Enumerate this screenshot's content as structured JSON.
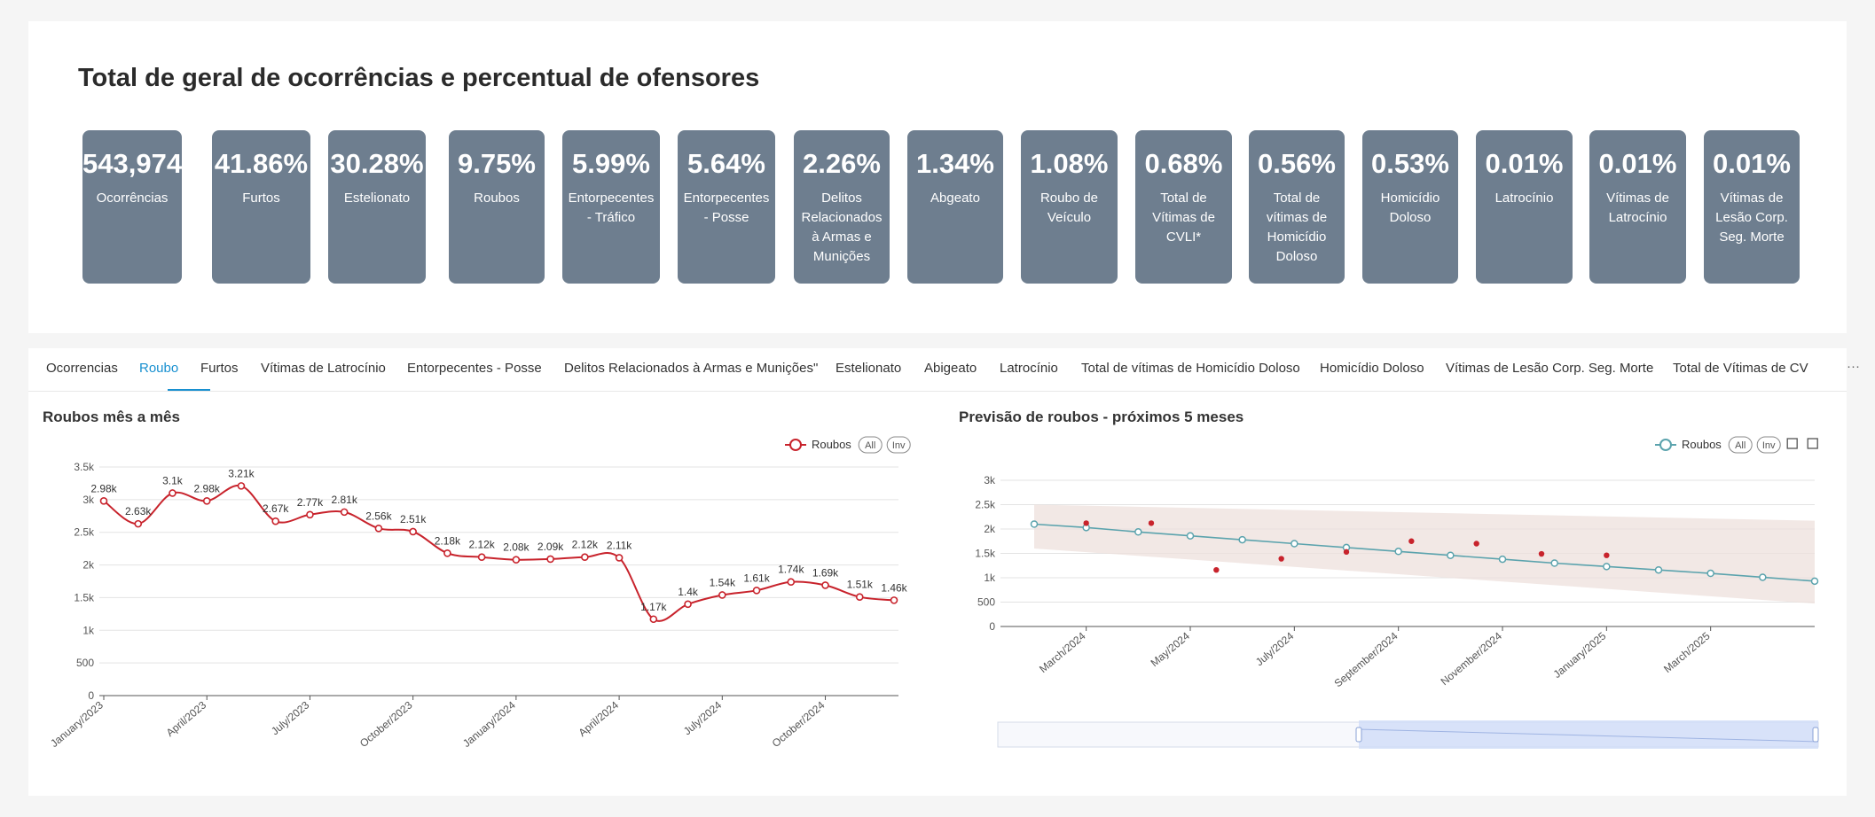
{
  "header": {
    "title": "Total de geral de ocorrências e percentual de ofensores"
  },
  "kpis": [
    {
      "value": "543,974",
      "label": "Ocorrências"
    },
    {
      "value": "41.86%",
      "label": "Furtos"
    },
    {
      "value": "30.28%",
      "label": "Estelionato"
    },
    {
      "value": "9.75%",
      "label": "Roubos"
    },
    {
      "value": "5.99%",
      "label": "Entorpecentes - Tráfico"
    },
    {
      "value": "5.64%",
      "label": "Entorpecentes - Posse"
    },
    {
      "value": "2.26%",
      "label": "Delitos Relacionados à Armas e Munições"
    },
    {
      "value": "1.34%",
      "label": "Abgeato"
    },
    {
      "value": "1.08%",
      "label": "Roubo de Veículo"
    },
    {
      "value": "0.68%",
      "label": "Total de Vítimas de CVLI*"
    },
    {
      "value": "0.56%",
      "label": "Total de vítimas de Homicídio Doloso"
    },
    {
      "value": "0.53%",
      "label": "Homicídio Doloso"
    },
    {
      "value": "0.01%",
      "label": "Latrocínio"
    },
    {
      "value": "0.01%",
      "label": "Vítimas de Latrocínio"
    },
    {
      "value": "0.01%",
      "label": "Vítimas de Lesão Corp. Seg. Morte"
    }
  ],
  "tabs": [
    "Ocorrencias",
    "Roubo",
    "Furtos",
    "Vítimas de Latrocínio",
    "Entorpecentes - Posse",
    "Delitos Relacionados à Armas e Munições\"",
    "Estelionato",
    "Abigeato",
    "Latrocínio",
    "Total de vítimas de Homicídio Doloso",
    "Homicídio Doloso",
    "Vítimas de Lesão Corp. Seg. Morte",
    "Total de Vítimas de CV"
  ],
  "active_tab": "Roubo",
  "more_label": "···",
  "colors": {
    "kpi_bg": "#6e7e8f",
    "series_red": "#c8232c",
    "series_teal": "#5ba3ad",
    "band": "#ede0dc",
    "active_tab": "#1890d0"
  },
  "chart_data": [
    {
      "type": "line",
      "title": "Roubos mês a mês",
      "series": [
        {
          "name": "Roubos",
          "values": [
            2980,
            2630,
            3100,
            2980,
            3210,
            2670,
            2770,
            2810,
            2560,
            2510,
            2180,
            2120,
            2080,
            2090,
            2120,
            2110,
            1170,
            1400,
            1540,
            1610,
            1740,
            1690,
            1510,
            1460
          ]
        }
      ],
      "data_labels": [
        "2.98k",
        "2.63k",
        "3.1k",
        "2.98k",
        "3.21k",
        "2.67k",
        "2.77k",
        "2.81k",
        "2.56k",
        "2.51k",
        "2.18k",
        "2.12k",
        "2.08k",
        "2.09k",
        "2.12k",
        "2.11k",
        "1.17k",
        "1.4k",
        "1.54k",
        "1.61k",
        "1.74k",
        "1.69k",
        "1.51k",
        "1.46k"
      ],
      "x_ticks": [
        "January/2023",
        "April/2023",
        "July/2023",
        "October/2023",
        "January/2024",
        "April/2024",
        "July/2024",
        "October/2024"
      ],
      "y_ticks": [
        "0",
        "500",
        "1k",
        "1.5k",
        "2k",
        "2.5k",
        "3k",
        "3.5k"
      ],
      "ylim": [
        0,
        3500
      ],
      "legend": {
        "position": "top-right",
        "toggles": [
          "All",
          "Inv"
        ]
      },
      "grid": true
    },
    {
      "type": "line",
      "title": "Previsão de roubos - próximos 5 meses",
      "series": [
        {
          "name": "Roubos",
          "values": [
            2100,
            2030,
            1940,
            1860,
            1780,
            1700,
            1620,
            1540,
            1460,
            1380,
            1300,
            1230,
            1160,
            1090,
            1010,
            930
          ]
        },
        {
          "name": "",
          "type": "scatter",
          "values": [
            2120,
            2120,
            1160,
            1390,
            1530,
            1750,
            1700,
            1490,
            1460
          ]
        }
      ],
      "band": {
        "upper": [
          2500,
          2170
        ],
        "lower": [
          1600,
          470
        ]
      },
      "x_ticks": [
        "March/2024",
        "May/2024",
        "July/2024",
        "September/2024",
        "November/2024",
        "January/2025",
        "March/2025"
      ],
      "y_ticks": [
        "0",
        "500",
        "1k",
        "1.5k",
        "2k",
        "2.5k",
        "3k"
      ],
      "ylim": [
        0,
        3000
      ],
      "legend": {
        "position": "top-right",
        "toggles": [
          "All",
          "Inv"
        ]
      },
      "grid": true,
      "zoom_slider": {
        "start": 0.44,
        "end": 1.0
      }
    }
  ]
}
